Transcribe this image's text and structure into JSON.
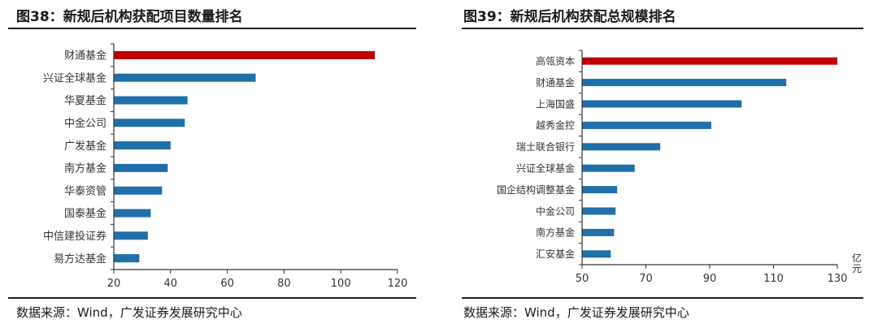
{
  "chart_data": [
    {
      "type": "bar",
      "orientation": "horizontal",
      "title": "图38：新规后机构获配项目数量排名",
      "categories": [
        "财通基金",
        "兴证全球基金",
        "华夏基金",
        "中金公司",
        "广发基金",
        "南方基金",
        "华泰资管",
        "国泰基金",
        "中信建投证券",
        "易方达基金"
      ],
      "values": [
        112,
        70,
        46,
        45,
        40,
        39,
        37,
        33,
        32,
        29
      ],
      "bar_colors": [
        "#c00000",
        "#1f6fa8",
        "#1f6fa8",
        "#1f6fa8",
        "#1f6fa8",
        "#1f6fa8",
        "#1f6fa8",
        "#1f6fa8",
        "#1f6fa8",
        "#1f6fa8"
      ],
      "xlim": [
        20,
        120
      ],
      "xticks": [
        20,
        40,
        60,
        80,
        100,
        120
      ],
      "xlabel": "",
      "ylabel": "",
      "grid": false,
      "source": "数据来源：Wind，广发证券发展研究中心"
    },
    {
      "type": "bar",
      "orientation": "horizontal",
      "title": "图39：新规后机构获配总规模排名",
      "categories": [
        "高瓴资本",
        "财通基金",
        "上海国盛",
        "越秀金控",
        "瑞士联合银行",
        "兴证全球基金",
        "国企结构调整基金",
        "中金公司",
        "南方基金",
        "汇安基金"
      ],
      "values": [
        130,
        114,
        100,
        90.5,
        74.5,
        66.5,
        61,
        60.5,
        60,
        59
      ],
      "bar_colors": [
        "#c00000",
        "#1f6fa8",
        "#1f6fa8",
        "#1f6fa8",
        "#1f6fa8",
        "#1f6fa8",
        "#1f6fa8",
        "#1f6fa8",
        "#1f6fa8",
        "#1f6fa8"
      ],
      "xlim": [
        50,
        130
      ],
      "xticks": [
        50,
        70,
        90,
        110,
        130
      ],
      "xlabel": "亿元",
      "ylabel": "",
      "grid": false,
      "source": "数据来源：Wind，广发证券发展研究中心"
    }
  ]
}
